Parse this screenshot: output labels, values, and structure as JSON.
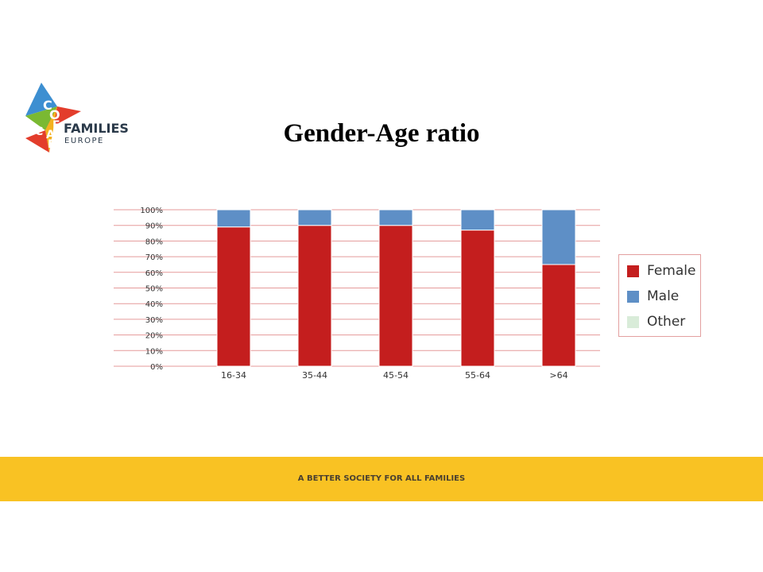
{
  "logo": {
    "letters": [
      "C",
      "O",
      "F",
      "A",
      "C",
      "E"
    ],
    "word1": "FAMILIES",
    "word2": "EUROPE"
  },
  "title": "Gender-Age ratio",
  "chart_data": {
    "type": "bar",
    "stacked": true,
    "categories": [
      "16-34",
      "35-44",
      "45-54",
      "55-64",
      ">64"
    ],
    "series": [
      {
        "name": "Female",
        "color": "#c41e1e",
        "values": [
          89,
          90,
          90,
          87,
          65
        ]
      },
      {
        "name": "Male",
        "color": "#5e8fc6",
        "values": [
          11,
          10,
          10,
          13,
          35
        ]
      },
      {
        "name": "Other",
        "color": "#d9ecd9",
        "values": [
          0,
          0,
          0,
          0,
          0
        ]
      }
    ],
    "yticks": [
      "100%",
      "90%",
      "80%",
      "70%",
      "60%",
      "50%",
      "40%",
      "30%",
      "20%",
      "10%",
      "0%"
    ],
    "ylim": [
      0,
      100
    ],
    "grid": true,
    "legend_position": "right"
  },
  "footer": {
    "tagline": "A BETTER SOCIETY FOR ALL FAMILIES",
    "color": "#f9c223"
  }
}
